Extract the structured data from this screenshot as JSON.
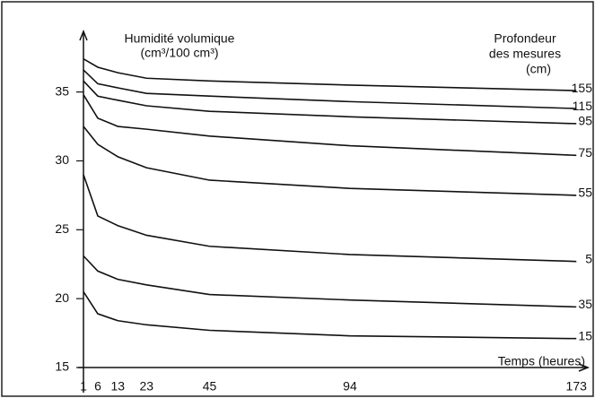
{
  "chart_data": {
    "type": "line",
    "title": "Humidité volumique",
    "subtitle": "(cm³/100 cm³)",
    "legend_title": [
      "Profondeur",
      "des mesures",
      "(cm)"
    ],
    "x_label": "Temps (heures)",
    "x": [
      1,
      6,
      13,
      23,
      45,
      94,
      173
    ],
    "xlim": [
      1,
      177
    ],
    "xticks": [
      1,
      6,
      13,
      23,
      45,
      94,
      173
    ],
    "ylim": [
      15,
      39.4
    ],
    "yticks": [
      15,
      20,
      25,
      30,
      35
    ],
    "series": [
      {
        "name": "155",
        "color": "#111111",
        "values": [
          37.4,
          36.8,
          36.4,
          36.0,
          35.8,
          35.5,
          35.1
        ]
      },
      {
        "name": "115",
        "color": "#111111",
        "values": [
          36.6,
          35.6,
          35.3,
          34.9,
          34.7,
          34.3,
          33.8
        ]
      },
      {
        "name": "95",
        "color": "#111111",
        "values": [
          35.8,
          34.7,
          34.4,
          34.0,
          33.6,
          33.2,
          32.7
        ]
      },
      {
        "name": "75",
        "color": "#111111",
        "values": [
          34.8,
          33.1,
          32.5,
          32.3,
          31.8,
          31.1,
          30.4
        ]
      },
      {
        "name": "55",
        "color": "#111111",
        "values": [
          32.5,
          31.2,
          30.3,
          29.5,
          28.6,
          28.0,
          27.5
        ]
      },
      {
        "name": "5",
        "color": "#111111",
        "values": [
          29.0,
          26.0,
          25.3,
          24.6,
          23.8,
          23.2,
          22.7
        ]
      },
      {
        "name": "35",
        "color": "#111111",
        "values": [
          23.1,
          22.0,
          21.4,
          21.0,
          20.3,
          19.9,
          19.4
        ]
      },
      {
        "name": "15",
        "color": "#111111",
        "values": [
          20.5,
          18.9,
          18.4,
          18.1,
          17.7,
          17.3,
          17.1
        ]
      }
    ]
  }
}
